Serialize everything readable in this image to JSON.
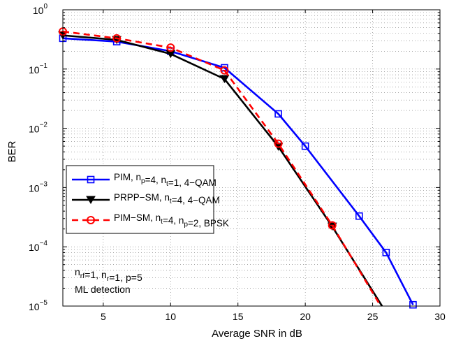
{
  "chart_data": {
    "type": "line",
    "title": "",
    "xlabel": "Average SNR in dB",
    "ylabel": "BER",
    "xlim": [
      2,
      30
    ],
    "ylim": [
      1e-05,
      1
    ],
    "yscale": "log",
    "grid": true,
    "legend_position": "bottom-left",
    "x_ticks": [
      5,
      10,
      15,
      20,
      25,
      30
    ],
    "x_tick_labels": [
      "5",
      "10",
      "15",
      "20",
      "25",
      "30"
    ],
    "y_ticks": [
      {
        "value": 1,
        "base": "10",
        "exp": "0"
      },
      {
        "value": 0.1,
        "base": "10",
        "exp": "−1"
      },
      {
        "value": 0.01,
        "base": "10",
        "exp": "−2"
      },
      {
        "value": 0.001,
        "base": "10",
        "exp": "−3"
      },
      {
        "value": 0.0001,
        "base": "10",
        "exp": "−4"
      },
      {
        "value": 1e-05,
        "base": "10",
        "exp": "−5"
      }
    ],
    "series": [
      {
        "legend": [
          {
            "t": "PIM, n"
          },
          {
            "t": "p",
            "sub": true
          },
          {
            "t": "=4, n"
          },
          {
            "t": "t",
            "sub": true
          },
          {
            "t": "=1, 4−QAM"
          }
        ],
        "color": "#0000ff",
        "marker": "square",
        "dash": "solid",
        "x": [
          2,
          6,
          10,
          14,
          18,
          20,
          24,
          26,
          28
        ],
        "y": [
          0.33,
          0.29,
          0.2,
          0.105,
          0.0175,
          0.005,
          0.00033,
          8e-05,
          1.05e-05
        ]
      },
      {
        "legend": [
          {
            "t": "PRPP−SM, n"
          },
          {
            "t": "t",
            "sub": true
          },
          {
            "t": "=4, 4−QAM"
          }
        ],
        "color": "#000000",
        "marker": "triangle-down",
        "dash": "solid",
        "x": [
          2,
          6,
          10,
          14,
          18,
          22,
          25.7
        ],
        "y": [
          0.37,
          0.31,
          0.18,
          0.068,
          0.0049,
          0.00022,
          1e-05
        ]
      },
      {
        "legend": [
          {
            "t": "PIM−SM, n"
          },
          {
            "t": "t",
            "sub": true
          },
          {
            "t": "=4, n"
          },
          {
            "t": "p",
            "sub": true
          },
          {
            "t": "=2, BPSK"
          }
        ],
        "color": "#ff0000",
        "marker": "circle",
        "dash": "dashed",
        "x": [
          2,
          6,
          10,
          14,
          18,
          22,
          25.6
        ],
        "y": [
          0.43,
          0.33,
          0.23,
          0.095,
          0.0055,
          0.00023,
          1e-05
        ]
      }
    ],
    "annotations": [
      [
        {
          "t": "n"
        },
        {
          "t": "rf",
          "sub": true
        },
        {
          "t": "=1, n"
        },
        {
          "t": "r",
          "sub": true
        },
        {
          "t": "=1, p=5"
        }
      ],
      [
        {
          "t": "ML detection"
        }
      ]
    ]
  }
}
